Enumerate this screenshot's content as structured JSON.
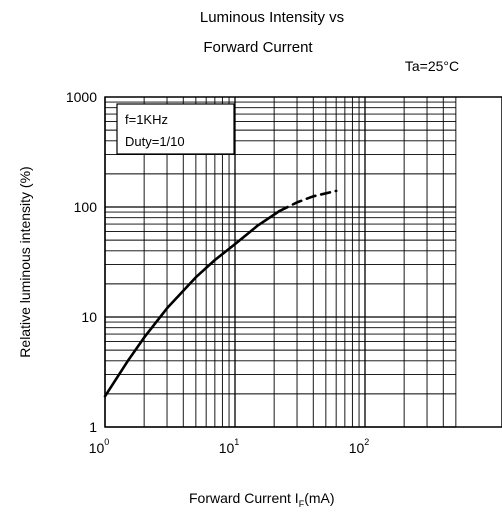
{
  "chart_data": {
    "type": "line",
    "title_line1": "Luminous Intensity vs",
    "title_line2": "Forward Current",
    "condition": "Ta=25°C",
    "xlabel_main": "Forward Current  I",
    "xlabel_sub": "F",
    "xlabel_unit": "(mA)",
    "ylabel": "Relative luminous intensity  (%)",
    "x_scale": "log",
    "y_scale": "log",
    "xlim": [
      1,
      500
    ],
    "ylim": [
      1,
      1000
    ],
    "x_ticks": [
      {
        "value": 1,
        "base": "10",
        "exp": "0"
      },
      {
        "value": 10,
        "base": "10",
        "exp": "1"
      },
      {
        "value": 100,
        "base": "10",
        "exp": "2"
      }
    ],
    "y_ticks": [
      {
        "value": 1,
        "label": "1"
      },
      {
        "value": 10,
        "label": "10"
      },
      {
        "value": 100,
        "label": "100"
      },
      {
        "value": 1000,
        "label": "1000"
      }
    ],
    "grid": true,
    "legend_box": {
      "line1": "f=1KHz",
      "line2": "Duty=1/10"
    },
    "series": [
      {
        "style": "solid",
        "x": [
          1,
          1.5,
          2,
          3,
          5,
          7,
          10,
          15,
          22
        ],
        "y": [
          1.9,
          4,
          6.5,
          12,
          23,
          33,
          46,
          68,
          92
        ]
      },
      {
        "style": "dashed",
        "x": [
          22,
          30,
          40,
          60
        ],
        "y": [
          92,
          110,
          125,
          140
        ]
      }
    ]
  }
}
